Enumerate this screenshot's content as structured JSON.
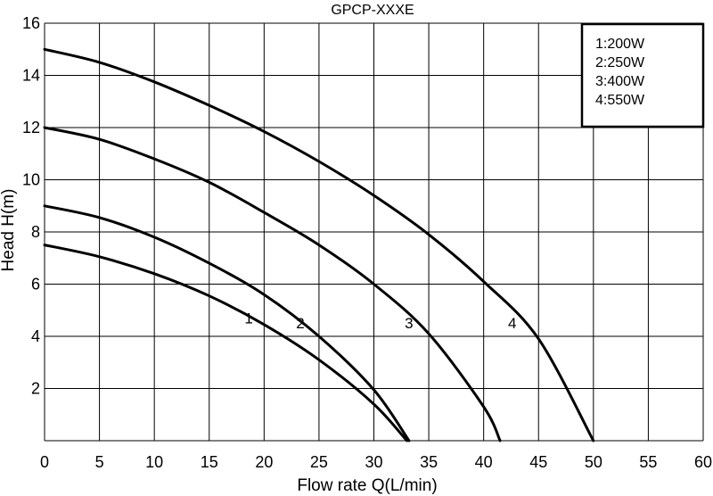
{
  "chart_data": {
    "type": "line",
    "title": "GPCP-XXXE",
    "xlabel": "Flow rate Q(L/min)",
    "ylabel": "Head H(m)",
    "xlim": [
      0,
      60
    ],
    "ylim": [
      0,
      16
    ],
    "xticks": [
      0,
      5,
      10,
      15,
      20,
      25,
      30,
      35,
      40,
      45,
      50,
      55,
      60
    ],
    "yticks": [
      2,
      4,
      6,
      8,
      10,
      12,
      14,
      16
    ],
    "grid": true,
    "legend_position": "top-right",
    "legend": [
      "1:200W",
      "2:250W",
      "3:400W",
      "4:550W"
    ],
    "series": [
      {
        "name": "1",
        "x": [
          0,
          5,
          10,
          15,
          20,
          25,
          30,
          33
        ],
        "y": [
          7.5,
          7.05,
          6.4,
          5.55,
          4.45,
          3.1,
          1.4,
          0
        ]
      },
      {
        "name": "2",
        "x": [
          0,
          5,
          10,
          15,
          20,
          25,
          30,
          33.2
        ],
        "y": [
          9.0,
          8.55,
          7.8,
          6.8,
          5.6,
          4.0,
          1.95,
          0
        ]
      },
      {
        "name": "3",
        "x": [
          0,
          5,
          10,
          15,
          20,
          25,
          30,
          35,
          40,
          41.5
        ],
        "y": [
          12.0,
          11.55,
          10.8,
          9.9,
          8.75,
          7.5,
          6.0,
          4.1,
          1.3,
          0
        ]
      },
      {
        "name": "4",
        "x": [
          0,
          5,
          10,
          15,
          20,
          25,
          30,
          35,
          40,
          45,
          50
        ],
        "y": [
          15.0,
          14.5,
          13.75,
          12.85,
          11.85,
          10.7,
          9.4,
          7.9,
          6.1,
          3.9,
          0
        ]
      }
    ],
    "curve_labels": [
      {
        "text": "1",
        "x": 18.6,
        "y": 4.5
      },
      {
        "text": "2",
        "x": 23.3,
        "y": 4.3
      },
      {
        "text": "3",
        "x": 33.2,
        "y": 4.3
      },
      {
        "text": "4",
        "x": 42.6,
        "y": 4.3
      }
    ]
  }
}
